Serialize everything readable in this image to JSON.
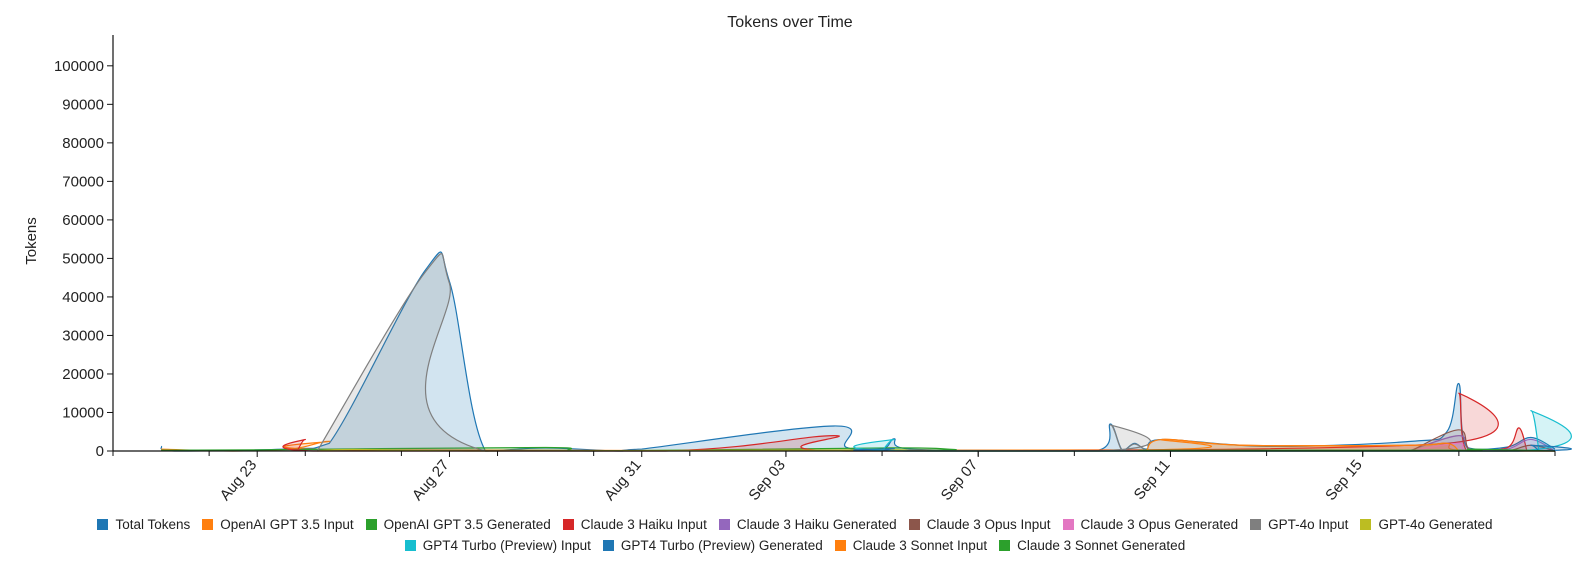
{
  "chart_data": {
    "type": "area",
    "title": "Tokens over Time",
    "ylabel": "Tokens",
    "xlabel": "",
    "ylim": [
      0,
      108000
    ],
    "x_range": [
      "2024-08-20",
      "2024-09-19"
    ],
    "y_ticks": [
      0,
      10000,
      20000,
      30000,
      40000,
      50000,
      60000,
      70000,
      80000,
      90000,
      100000
    ],
    "x_ticks": [
      {
        "date": "2024-08-23",
        "label": "Aug 23"
      },
      {
        "date": "2024-08-27",
        "label": "Aug 27"
      },
      {
        "date": "2024-08-31",
        "label": "Aug 31"
      },
      {
        "date": "2024-09-03",
        "label": "Sep 03"
      },
      {
        "date": "2024-09-07",
        "label": "Sep 07"
      },
      {
        "date": "2024-09-11",
        "label": "Sep 11"
      },
      {
        "date": "2024-09-15",
        "label": "Sep 15"
      }
    ],
    "legend_position": "bottom",
    "grid": false,
    "series": [
      {
        "name": "Total Tokens",
        "color": "#1f77b4",
        "points": [
          [
            "2024-08-21 00:00",
            1200
          ],
          [
            "2024-08-21 08:00",
            0
          ],
          [
            "2024-08-23 18:00",
            600
          ],
          [
            "2024-08-24 12:00",
            2000
          ],
          [
            "2024-08-26 12:00",
            47000
          ],
          [
            "2024-08-27 00:00",
            44000
          ],
          [
            "2024-08-27 18:00",
            0
          ],
          [
            "2024-08-29 00:00",
            800
          ],
          [
            "2024-08-30 12:00",
            0
          ],
          [
            "2024-08-31 00:00",
            500
          ],
          [
            "2024-09-04 00:00",
            6500
          ],
          [
            "2024-09-04 06:00",
            1000
          ],
          [
            "2024-09-05 00:00",
            500
          ],
          [
            "2024-09-05 06:00",
            3200
          ],
          [
            "2024-09-05 12:00",
            600
          ],
          [
            "2024-09-07 12:00",
            200
          ],
          [
            "2024-09-09 12:00",
            200
          ],
          [
            "2024-09-09 18:00",
            7000
          ],
          [
            "2024-09-10 00:00",
            200
          ],
          [
            "2024-09-10 06:00",
            2000
          ],
          [
            "2024-09-10 12:00",
            500
          ],
          [
            "2024-09-10 20:00",
            3000
          ],
          [
            "2024-09-13 00:00",
            1200
          ],
          [
            "2024-09-16 00:00",
            2500
          ],
          [
            "2024-09-16 18:00",
            5000
          ],
          [
            "2024-09-17 00:00",
            17500
          ],
          [
            "2024-09-17 04:00",
            1000
          ],
          [
            "2024-09-18 00:00",
            1000
          ],
          [
            "2024-09-18 12:00",
            3500
          ],
          [
            "2024-09-19 00:00",
            500
          ]
        ]
      },
      {
        "name": "OpenAI GPT 3.5 Input",
        "color": "#ff7f0e",
        "points": [
          [
            "2024-08-21 00:00",
            500
          ],
          [
            "2024-08-22 12:00",
            0
          ],
          [
            "2024-08-23 18:00",
            600
          ],
          [
            "2024-08-24 12:00",
            2500
          ],
          [
            "2024-08-25 00:00",
            300
          ],
          [
            "2024-09-10 12:00",
            300
          ],
          [
            "2024-09-10 20:00",
            3000
          ],
          [
            "2024-09-12 12:00",
            1500
          ],
          [
            "2024-09-16 00:00",
            1500
          ],
          [
            "2024-09-16 18:00",
            2000
          ],
          [
            "2024-09-17 00:00",
            200
          ],
          [
            "2024-09-19 00:00",
            0
          ]
        ]
      },
      {
        "name": "OpenAI GPT 3.5 Generated",
        "color": "#2ca02c",
        "points": [
          [
            "2024-08-21 00:00",
            200
          ],
          [
            "2024-08-23 00:00",
            300
          ],
          [
            "2024-08-29 00:00",
            900
          ],
          [
            "2024-08-30 00:00",
            0
          ],
          [
            "2024-09-05 00:00",
            800
          ],
          [
            "2024-09-06 12:00",
            400
          ],
          [
            "2024-09-07 00:00",
            0
          ],
          [
            "2024-09-19 00:00",
            0
          ]
        ]
      },
      {
        "name": "Claude 3 Haiku Input",
        "color": "#d62728",
        "points": [
          [
            "2024-08-23 20:00",
            0
          ],
          [
            "2024-08-24 00:00",
            3000
          ],
          [
            "2024-08-24 04:00",
            0
          ],
          [
            "2024-08-31 12:00",
            0
          ],
          [
            "2024-09-04 00:00",
            4000
          ],
          [
            "2024-09-04 06:00",
            0
          ],
          [
            "2024-09-16 18:00",
            2000
          ],
          [
            "2024-09-17 00:00",
            15000
          ],
          [
            "2024-09-17 04:00",
            0
          ],
          [
            "2024-09-18 00:00",
            800
          ],
          [
            "2024-09-18 06:00",
            6000
          ],
          [
            "2024-09-18 10:00",
            0
          ]
        ]
      },
      {
        "name": "Claude 3 Haiku Generated",
        "color": "#9467bd",
        "points": [
          [
            "2024-09-16 00:00",
            200
          ],
          [
            "2024-09-17 00:00",
            4000
          ],
          [
            "2024-09-17 06:00",
            500
          ],
          [
            "2024-09-18 00:00",
            500
          ],
          [
            "2024-09-18 12:00",
            3000
          ],
          [
            "2024-09-19 00:00",
            0
          ]
        ]
      },
      {
        "name": "Claude 3 Opus Input",
        "color": "#8c564b",
        "points": [
          [
            "2024-09-16 00:00",
            0
          ],
          [
            "2024-09-17 00:00",
            5500
          ],
          [
            "2024-09-17 06:00",
            0
          ],
          [
            "2024-09-18 00:00",
            0
          ],
          [
            "2024-09-18 12:00",
            1500
          ],
          [
            "2024-09-19 00:00",
            0
          ]
        ]
      },
      {
        "name": "Claude 3 Opus Generated",
        "color": "#e377c2",
        "points": [
          [
            "2024-09-16 00:00",
            0
          ],
          [
            "2024-09-17 00:00",
            2000
          ],
          [
            "2024-09-17 06:00",
            0
          ],
          [
            "2024-09-19 00:00",
            0
          ]
        ]
      },
      {
        "name": "GPT-4o Input",
        "color": "#7f7f7f",
        "points": [
          [
            "2024-08-24 06:00",
            0
          ],
          [
            "2024-08-26 12:00",
            46500
          ],
          [
            "2024-08-27 00:00",
            43500
          ],
          [
            "2024-08-27 18:00",
            0
          ],
          [
            "2024-09-09 12:00",
            0
          ],
          [
            "2024-09-09 18:00",
            6800
          ],
          [
            "2024-09-10 00:00",
            0
          ],
          [
            "2024-09-10 06:00",
            1800
          ],
          [
            "2024-09-10 12:00",
            0
          ]
        ]
      },
      {
        "name": "GPT-4o Generated",
        "color": "#bcbd22",
        "points": [
          [
            "2024-08-24 06:00",
            0
          ],
          [
            "2024-08-25 00:00",
            400
          ],
          [
            "2024-08-27 18:00",
            0
          ],
          [
            "2024-09-05 00:00",
            300
          ],
          [
            "2024-09-06 00:00",
            0
          ],
          [
            "2024-09-19 00:00",
            0
          ]
        ]
      },
      {
        "name": "GPT4 Turbo (Preview) Input",
        "color": "#17becf",
        "points": [
          [
            "2024-09-05 00:00",
            0
          ],
          [
            "2024-09-05 06:00",
            3000
          ],
          [
            "2024-09-05 12:00",
            0
          ],
          [
            "2024-09-18 06:00",
            0
          ],
          [
            "2024-09-18 12:00",
            10500
          ],
          [
            "2024-09-18 16:00",
            0
          ]
        ]
      },
      {
        "name": "GPT4 Turbo (Preview) Generated",
        "color": "#1f77b4",
        "points": [
          [
            "2024-09-05 00:00",
            0
          ],
          [
            "2024-09-05 06:00",
            600
          ],
          [
            "2024-09-05 12:00",
            0
          ],
          [
            "2024-09-18 06:00",
            0
          ],
          [
            "2024-09-18 12:00",
            1500
          ],
          [
            "2024-09-18 16:00",
            0
          ]
        ]
      },
      {
        "name": "Claude 3 Sonnet Input",
        "color": "#ff7f0e",
        "points": [
          [
            "2024-09-10 12:00",
            0
          ],
          [
            "2024-09-10 20:00",
            3000
          ],
          [
            "2024-09-12 12:00",
            1500
          ],
          [
            "2024-09-16 00:00",
            1500
          ],
          [
            "2024-09-16 18:00",
            2000
          ],
          [
            "2024-09-17 00:00",
            0
          ]
        ]
      },
      {
        "name": "Claude 3 Sonnet Generated",
        "color": "#2ca02c",
        "points": [
          [
            "2024-09-10 12:00",
            0
          ],
          [
            "2024-09-11 00:00",
            200
          ],
          [
            "2024-09-17 00:00",
            200
          ],
          [
            "2024-09-17 06:00",
            500
          ],
          [
            "2024-09-19 00:00",
            0
          ]
        ]
      }
    ]
  }
}
